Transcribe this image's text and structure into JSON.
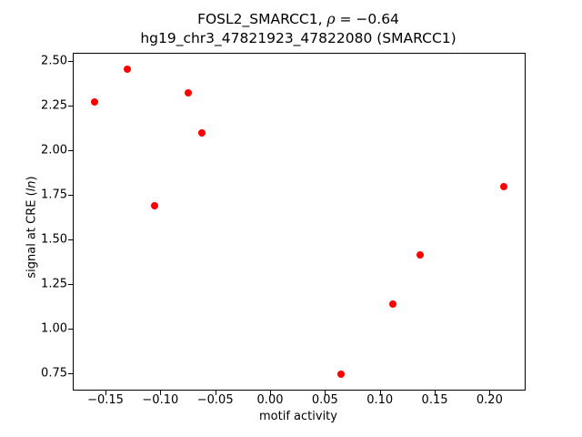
{
  "title": {
    "line1_prefix": "FOSL2_SMARCC1, ",
    "rho": "ρ",
    "line1_suffix": " = −0.64",
    "line2": "hg19_chr3_47821923_47822080 (SMARCC1)"
  },
  "axis_labels": {
    "x": "motif activity",
    "y_prefix": "signal at CRE (",
    "y_italic": "ln",
    "y_suffix": ")"
  },
  "chart_data": {
    "type": "scatter",
    "title": "FOSL2_SMARCC1, ρ = −0.64 | hg19_chr3_47821923_47822080 (SMARCC1)",
    "xlabel": "motif activity",
    "ylabel": "signal at CRE (ln)",
    "marker_color": "#ff0000",
    "grid": false,
    "legend": false,
    "xlim": [
      -0.179,
      0.232
    ],
    "ylim": [
      0.659,
      2.541
    ],
    "xticks": [
      -0.15,
      -0.1,
      -0.05,
      0.0,
      0.05,
      0.1,
      0.15,
      0.2
    ],
    "xtick_labels": [
      "−0.15",
      "−0.10",
      "−0.05",
      "0.00",
      "0.05",
      "0.10",
      "0.15",
      "0.20"
    ],
    "yticks": [
      0.75,
      1.0,
      1.25,
      1.5,
      1.75,
      2.0,
      2.25,
      2.5
    ],
    "ytick_labels": [
      "0.75",
      "1.00",
      "1.25",
      "1.50",
      "1.75",
      "2.00",
      "2.25",
      "2.50"
    ],
    "points": [
      {
        "x": -0.16,
        "y": 2.27
      },
      {
        "x": -0.13,
        "y": 2.455
      },
      {
        "x": -0.105,
        "y": 1.69
      },
      {
        "x": -0.075,
        "y": 2.32
      },
      {
        "x": -0.062,
        "y": 2.095
      },
      {
        "x": 0.065,
        "y": 0.745
      },
      {
        "x": 0.112,
        "y": 1.14
      },
      {
        "x": 0.137,
        "y": 1.415
      },
      {
        "x": 0.213,
        "y": 1.795
      }
    ]
  }
}
